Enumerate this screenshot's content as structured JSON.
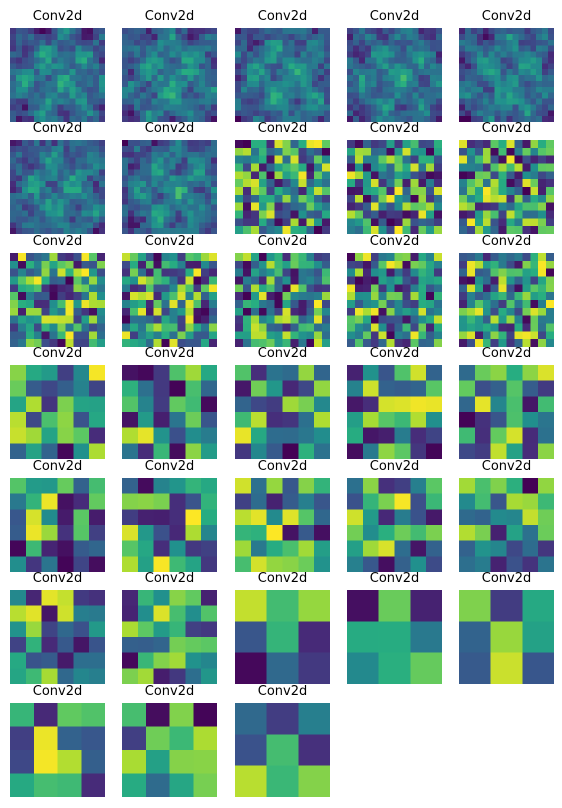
{
  "chart_data": {
    "type": "heatmap",
    "colormap": "viridis",
    "columns": 5,
    "panels": [
      {
        "title": "Conv2d",
        "size": 16
      },
      {
        "title": "Conv2d",
        "size": 16
      },
      {
        "title": "Conv2d",
        "size": 16
      },
      {
        "title": "Conv2d",
        "size": 16
      },
      {
        "title": "Conv2d",
        "size": 16
      },
      {
        "title": "Conv2d",
        "size": 16
      },
      {
        "title": "Conv2d",
        "size": 16
      },
      {
        "title": "Conv2d",
        "size": 12
      },
      {
        "title": "Conv2d",
        "size": 12
      },
      {
        "title": "Conv2d",
        "size": 12
      },
      {
        "title": "Conv2d",
        "size": 12
      },
      {
        "title": "Conv2d",
        "size": 12
      },
      {
        "title": "Conv2d",
        "size": 12
      },
      {
        "title": "Conv2d",
        "size": 12
      },
      {
        "title": "Conv2d",
        "size": 12
      },
      {
        "title": "Conv2d",
        "size": 6
      },
      {
        "title": "Conv2d",
        "size": 6
      },
      {
        "title": "Conv2d",
        "size": 6
      },
      {
        "title": "Conv2d",
        "size": 6
      },
      {
        "title": "Conv2d",
        "size": 6
      },
      {
        "title": "Conv2d",
        "size": 6
      },
      {
        "title": "Conv2d",
        "size": 6
      },
      {
        "title": "Conv2d",
        "size": 6
      },
      {
        "title": "Conv2d",
        "size": 6
      },
      {
        "title": "Conv2d",
        "size": 6
      },
      {
        "title": "Conv2d",
        "size": 6
      },
      {
        "title": "Conv2d",
        "size": 6
      },
      {
        "title": "Conv2d",
        "size": 3
      },
      {
        "title": "Conv2d",
        "size": 3
      },
      {
        "title": "Conv2d",
        "size": 3
      },
      {
        "title": "Conv2d",
        "size": 4
      },
      {
        "title": "Conv2d",
        "size": 4
      },
      {
        "title": "Conv2d",
        "size": 3
      }
    ]
  }
}
